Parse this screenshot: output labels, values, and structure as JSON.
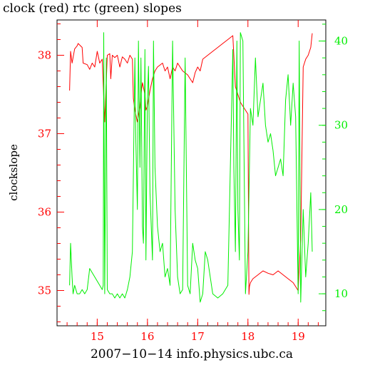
{
  "chart_data": {
    "type": "line",
    "title": "clock (red) rtc (green) slopes",
    "xlabel": "2007−10−14 info.physics.ubc.ca",
    "ylabel": "clockslope",
    "xlim": [
      14.2,
      19.55
    ],
    "x_ticks": [
      15,
      16,
      17,
      18,
      19
    ],
    "y_left": {
      "lim": [
        34.55,
        38.45
      ],
      "ticks": [
        35,
        36,
        37,
        38
      ],
      "color": "#ff0000"
    },
    "y_right": {
      "lim": [
        6.2,
        42.5
      ],
      "ticks": [
        10,
        20,
        30,
        40
      ],
      "color": "#00ee00"
    },
    "series": [
      {
        "name": "clock",
        "axis": "left",
        "color": "#ff0000",
        "x": [
          14.45,
          14.47,
          14.5,
          14.55,
          14.6,
          14.62,
          14.7,
          14.72,
          14.8,
          14.85,
          14.9,
          14.95,
          15.0,
          15.05,
          15.1,
          15.15,
          15.2,
          15.25,
          15.27,
          15.3,
          15.35,
          15.4,
          15.45,
          15.5,
          15.55,
          15.6,
          15.65,
          15.7,
          15.72,
          15.75,
          15.8,
          15.85,
          15.88,
          15.9,
          15.95,
          15.97,
          16.0,
          16.05,
          16.1,
          16.15,
          16.2,
          16.3,
          16.35,
          16.4,
          16.45,
          16.5,
          16.55,
          16.6,
          16.7,
          16.8,
          16.85,
          16.9,
          16.95,
          17.0,
          17.05,
          17.1,
          17.2,
          17.3,
          17.4,
          17.5,
          17.6,
          17.7,
          17.75,
          17.8,
          17.85,
          17.9,
          17.95,
          18.0,
          18.02,
          18.03,
          18.05,
          18.1,
          18.2,
          18.3,
          18.4,
          18.5,
          18.6,
          18.7,
          18.8,
          18.9,
          18.95,
          19.0,
          19.03,
          19.05,
          19.1,
          19.15,
          19.2,
          19.25,
          19.28
        ],
        "values": [
          37.55,
          38.05,
          37.9,
          38.08,
          38.12,
          38.15,
          38.1,
          37.9,
          37.88,
          37.82,
          37.9,
          37.85,
          38.05,
          37.9,
          37.95,
          37.15,
          38.0,
          38.02,
          37.7,
          38.0,
          37.97,
          38.0,
          37.85,
          37.98,
          37.95,
          37.9,
          38.0,
          37.95,
          37.45,
          37.3,
          37.15,
          37.35,
          37.55,
          37.65,
          37.5,
          37.3,
          37.35,
          37.55,
          37.7,
          37.8,
          37.85,
          37.9,
          37.8,
          37.85,
          37.7,
          37.85,
          37.8,
          37.9,
          37.8,
          37.75,
          37.7,
          37.65,
          37.78,
          37.85,
          37.8,
          37.95,
          38.0,
          38.05,
          38.1,
          38.15,
          38.2,
          38.25,
          37.6,
          37.5,
          37.4,
          37.35,
          37.3,
          37.25,
          34.95,
          35.05,
          35.1,
          35.15,
          35.2,
          35.25,
          35.22,
          35.2,
          35.25,
          35.2,
          35.15,
          35.1,
          35.05,
          35.0,
          35.4,
          35.65,
          37.85,
          37.95,
          38.0,
          38.1,
          38.28
        ]
      },
      {
        "name": "rtc",
        "axis": "right",
        "color": "#00ee00",
        "x": [
          14.45,
          14.47,
          14.5,
          14.52,
          14.55,
          14.6,
          14.65,
          14.7,
          14.75,
          14.8,
          14.85,
          14.9,
          14.95,
          15.0,
          15.05,
          15.1,
          15.12,
          15.13,
          15.15,
          15.18,
          15.2,
          15.25,
          15.3,
          15.35,
          15.4,
          15.45,
          15.5,
          15.55,
          15.6,
          15.65,
          15.7,
          15.75,
          15.77,
          15.8,
          15.82,
          15.85,
          15.87,
          15.9,
          15.92,
          15.95,
          15.97,
          16.0,
          16.02,
          16.05,
          16.1,
          16.12,
          16.15,
          16.2,
          16.25,
          16.3,
          16.35,
          16.4,
          16.45,
          16.5,
          16.55,
          16.6,
          16.65,
          16.7,
          16.75,
          16.8,
          16.85,
          16.9,
          16.95,
          17.0,
          17.05,
          17.1,
          17.15,
          17.2,
          17.3,
          17.4,
          17.5,
          17.6,
          17.7,
          17.72,
          17.75,
          17.78,
          17.8,
          17.83,
          17.85,
          17.9,
          17.95,
          18.0,
          18.05,
          18.1,
          18.15,
          18.2,
          18.25,
          18.3,
          18.35,
          18.4,
          18.45,
          18.5,
          18.55,
          18.6,
          18.65,
          18.7,
          18.75,
          18.8,
          18.85,
          18.9,
          18.95,
          19.0,
          19.02,
          19.05,
          19.1,
          19.15,
          19.2,
          19.25,
          19.28
        ],
        "values": [
          11,
          16,
          12,
          10,
          11,
          10,
          10,
          10.5,
          10,
          10.5,
          13,
          12.5,
          12,
          11.5,
          11,
          10.5,
          11,
          41,
          10,
          38,
          10.5,
          10,
          10,
          9.5,
          10,
          9.5,
          10,
          9.5,
          10.5,
          12,
          15,
          38,
          28,
          20,
          40,
          25,
          38,
          18,
          16,
          39,
          14,
          33,
          37,
          22,
          14,
          40,
          25,
          18,
          15,
          16,
          12,
          13,
          11,
          40,
          20,
          12,
          10,
          10.5,
          38,
          11,
          10,
          16,
          14,
          13,
          9,
          10,
          15,
          14,
          10,
          9.5,
          10,
          11,
          39,
          25,
          15,
          40,
          20,
          14,
          41,
          40,
          10,
          15,
          32,
          30,
          38,
          31,
          33,
          35,
          30,
          28,
          29,
          27,
          24,
          25,
          26,
          24,
          33,
          36,
          30,
          35,
          31,
          10,
          40,
          9,
          20,
          12,
          16,
          22,
          15
        ]
      }
    ]
  }
}
